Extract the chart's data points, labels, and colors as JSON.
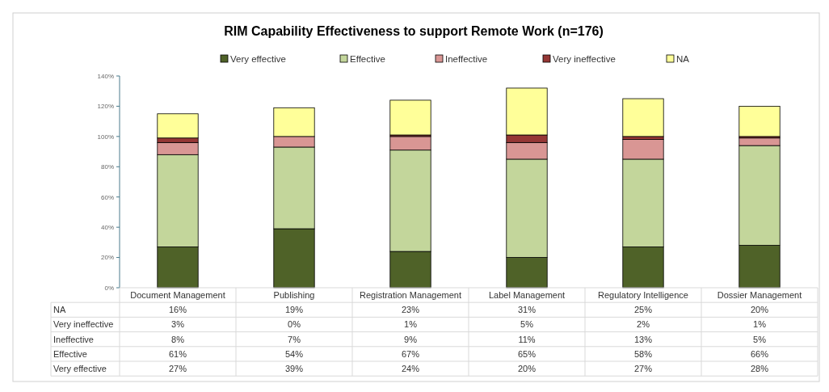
{
  "chart_data": {
    "type": "bar",
    "title": "RIM Capability Effectiveness to support Remote Work (n=176)",
    "stacked": true,
    "legend": "top",
    "grid": false,
    "categories": [
      "Document Management",
      "Publishing",
      "Registration Management",
      "Label Management",
      "Regulatory Intelligence",
      "Dossier Management"
    ],
    "ylim": [
      0,
      140
    ],
    "yticks": [
      {
        "value": 0,
        "label": "0%"
      },
      {
        "value": 20,
        "label": "20%"
      },
      {
        "value": 40,
        "label": "40%"
      },
      {
        "value": 60,
        "label": "60%"
      },
      {
        "value": 80,
        "label": "80%"
      },
      {
        "value": 100,
        "label": "100%"
      },
      {
        "value": 120,
        "label": "120%"
      },
      {
        "value": 140,
        "label": "140%"
      }
    ],
    "series": [
      {
        "name": "Very effective",
        "color": "#4f6228",
        "values": [
          27,
          39,
          24,
          20,
          27,
          28
        ],
        "value_labels": [
          "27%",
          "39%",
          "24%",
          "20%",
          "27%",
          "28%"
        ]
      },
      {
        "name": "Effective",
        "color": "#c3d69b",
        "values": [
          61,
          54,
          67,
          65,
          58,
          66
        ],
        "value_labels": [
          "61%",
          "54%",
          "67%",
          "65%",
          "58%",
          "66%"
        ]
      },
      {
        "name": "Ineffective",
        "color": "#d99694",
        "values": [
          8,
          7,
          9,
          11,
          13,
          5
        ],
        "value_labels": [
          "8%",
          "7%",
          "9%",
          "11%",
          "13%",
          "5%"
        ]
      },
      {
        "name": "Very ineffective",
        "color": "#953735",
        "values": [
          3,
          0,
          1,
          5,
          2,
          1
        ],
        "value_labels": [
          "3%",
          "0%",
          "1%",
          "5%",
          "2%",
          "1%"
        ]
      },
      {
        "name": "NA",
        "color": "#ffff99",
        "values": [
          16,
          19,
          23,
          31,
          25,
          20
        ],
        "value_labels": [
          "16%",
          "19%",
          "23%",
          "31%",
          "25%",
          "20%"
        ]
      }
    ]
  }
}
